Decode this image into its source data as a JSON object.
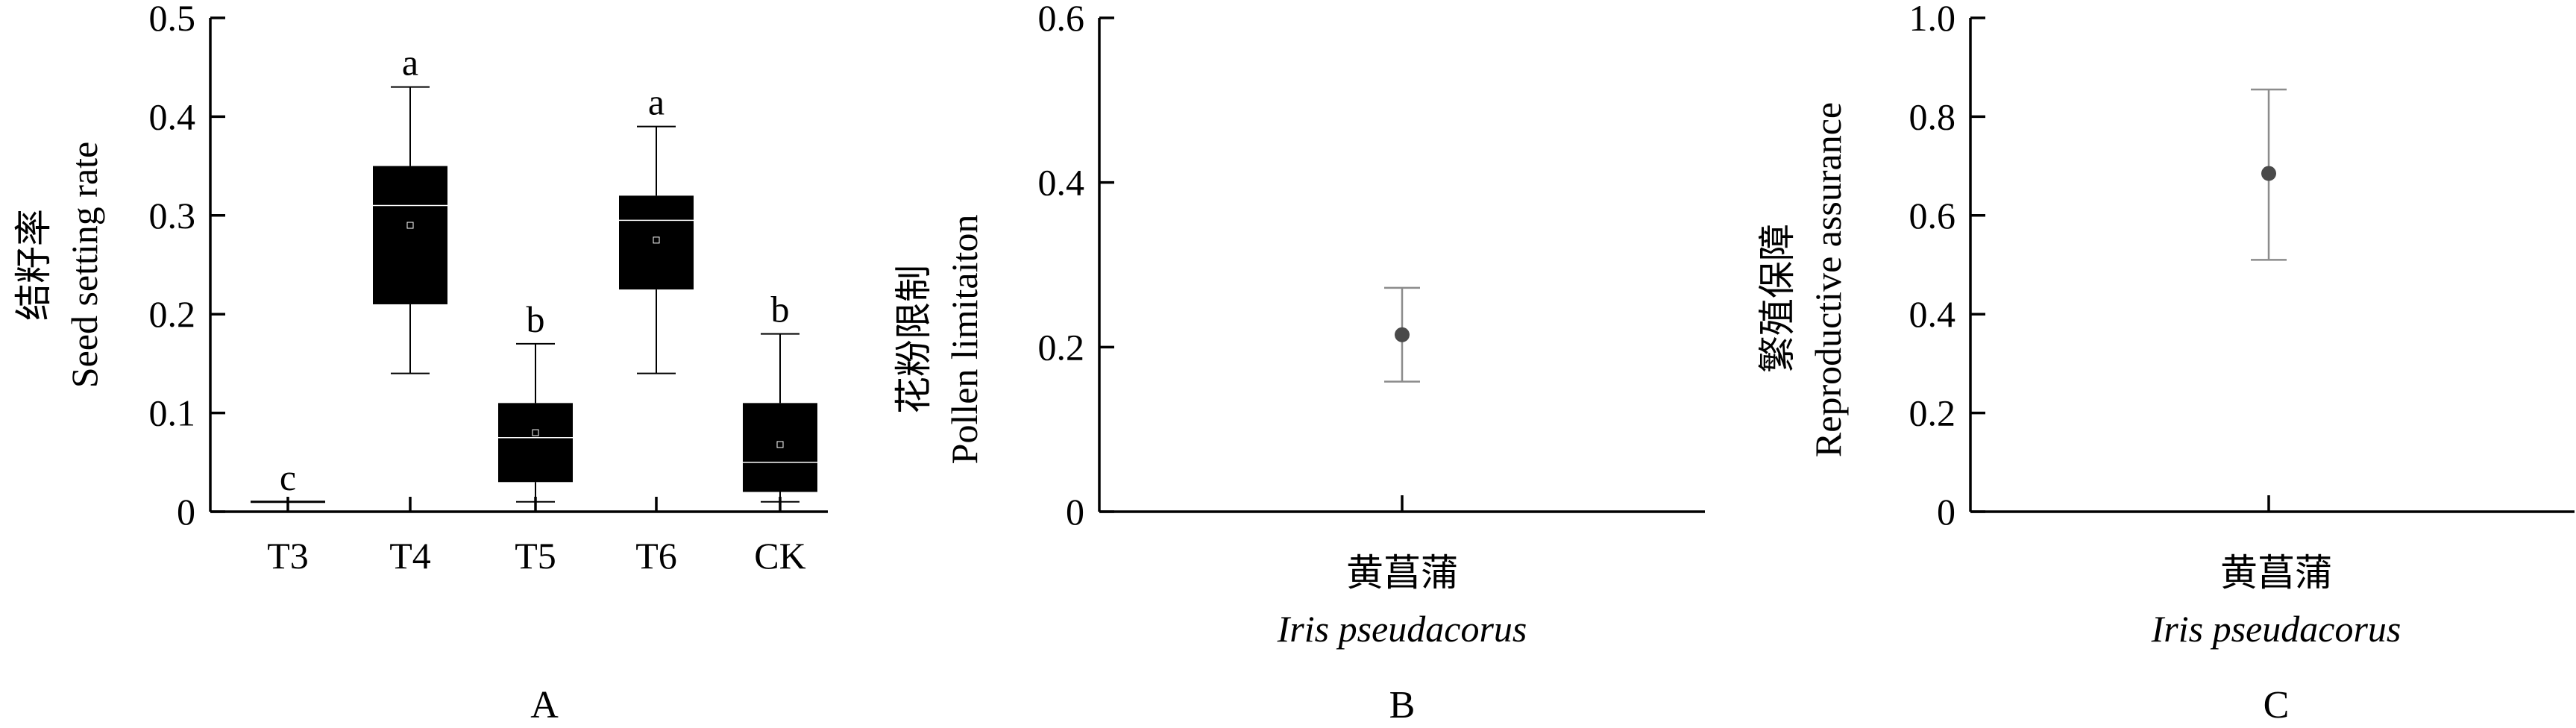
{
  "chart_data": [
    {
      "type": "box",
      "panel_label": "A",
      "ylabel_zh": "结籽率",
      "ylabel_en": "Seed setting rate",
      "ylim": [
        0,
        0.5
      ],
      "yticks": [
        "0",
        "0.1",
        "0.2",
        "0.3",
        "0.4",
        "0.5"
      ],
      "yticks_values": [
        0,
        0.1,
        0.2,
        0.3,
        0.4,
        0.5
      ],
      "grid": false,
      "categories": [
        "T3",
        "T4",
        "T5",
        "T6",
        "CK"
      ],
      "boxes": [
        {
          "name": "T3",
          "min": 0.01,
          "q1": 0.01,
          "median": 0.01,
          "q3": 0.01,
          "max": 0.01,
          "mean": 0.01,
          "letter": "c"
        },
        {
          "name": "T4",
          "min": 0.14,
          "q1": 0.21,
          "median": 0.31,
          "q3": 0.35,
          "max": 0.43,
          "mean": 0.29,
          "letter": "a"
        },
        {
          "name": "T5",
          "min": 0.01,
          "q1": 0.03,
          "median": 0.075,
          "q3": 0.11,
          "max": 0.17,
          "mean": 0.08,
          "letter": "b"
        },
        {
          "name": "T6",
          "min": 0.14,
          "q1": 0.225,
          "median": 0.295,
          "q3": 0.32,
          "max": 0.39,
          "mean": 0.275,
          "letter": "a"
        },
        {
          "name": "CK",
          "min": 0.01,
          "q1": 0.02,
          "median": 0.05,
          "q3": 0.11,
          "max": 0.18,
          "mean": 0.068,
          "letter": "b"
        }
      ]
    },
    {
      "type": "scatter",
      "panel_label": "B",
      "ylabel_zh": "花粉限制",
      "ylabel_en": "Pollen limitaiton",
      "ylim": [
        0,
        0.6
      ],
      "yticks": [
        "0",
        "0.2",
        "0.4",
        "0.6"
      ],
      "yticks_values": [
        0,
        0.2,
        0.4,
        0.6
      ],
      "grid": false,
      "xlabel_zh": "黄菖蒲",
      "xlabel_en": "Iris pseudacorus",
      "points": [
        {
          "value": 0.215,
          "lower": 0.158,
          "upper": 0.272
        }
      ]
    },
    {
      "type": "scatter",
      "panel_label": "C",
      "ylabel_zh": "繁殖保障",
      "ylabel_en": "Reproductive assurance",
      "ylim": [
        0,
        1.0
      ],
      "yticks": [
        "0",
        "0.2",
        "0.4",
        "0.6",
        "0.8",
        "1.0"
      ],
      "yticks_values": [
        0,
        0.2,
        0.4,
        0.6,
        0.8,
        1.0
      ],
      "grid": false,
      "xlabel_zh": "黄菖蒲",
      "xlabel_en": "Iris pseudacorus",
      "points": [
        {
          "value": 0.685,
          "lower": 0.51,
          "upper": 0.855
        }
      ]
    }
  ],
  "colors": {
    "box_fill": "#000000",
    "box_line": "#ffffff",
    "whisker": "#000000",
    "point": "#4a4a4a",
    "error_bar": "#8c8c8c"
  }
}
